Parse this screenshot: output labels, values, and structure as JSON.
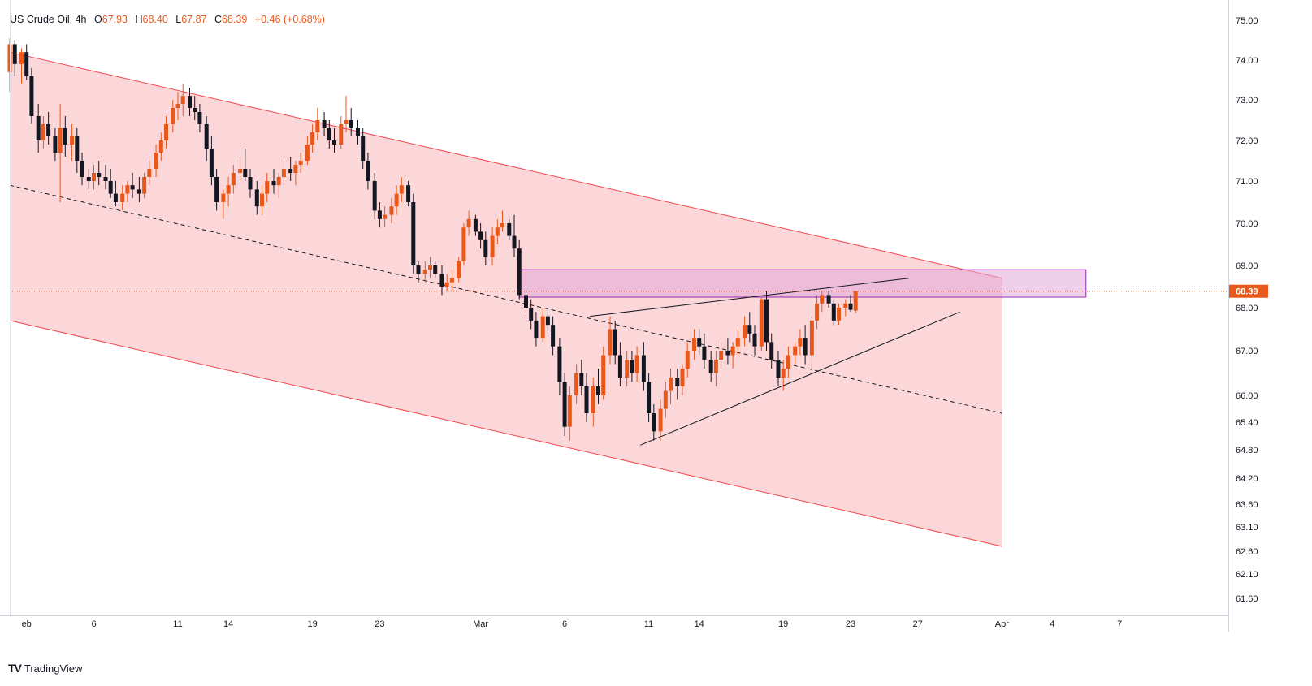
{
  "header": {
    "symbol": "US Crude Oil, 4h",
    "open_label": "O",
    "open": "67.93",
    "high_label": "H",
    "high": "68.40",
    "low_label": "L",
    "low": "67.87",
    "close_label": "C",
    "close": "68.39",
    "change": "+0.46 (+0.68%)"
  },
  "brand": {
    "name": "TradingView",
    "logo": "TV"
  },
  "colors": {
    "up": "#e8581b",
    "down": "#131722",
    "channel_fill": "#f9c9cc",
    "channel_line": "#f0484f",
    "zone_fill": "#e2a5d8",
    "zone_line": "#9c27b0",
    "price_badge": "#e8581b"
  },
  "chart_data": {
    "type": "candlestick",
    "interval": "4h",
    "last_price": "68.39",
    "y_ticks": [
      "75.00",
      "74.00",
      "73.00",
      "72.00",
      "71.00",
      "70.00",
      "69.00",
      "68.00",
      "67.00",
      "66.00",
      "65.40",
      "64.80",
      "64.20",
      "63.60",
      "63.10",
      "62.60",
      "62.10",
      "61.60"
    ],
    "y_tick_values": [
      75.0,
      74.0,
      73.0,
      72.0,
      71.0,
      70.0,
      69.0,
      68.0,
      67.0,
      66.0,
      65.4,
      64.8,
      64.2,
      63.6,
      63.1,
      62.6,
      62.1,
      61.6
    ],
    "x_ticks": [
      "eb",
      "6",
      "11",
      "14",
      "19",
      "23",
      "Mar",
      "6",
      "11",
      "14",
      "19",
      "23",
      "27",
      "Apr",
      "4",
      "7"
    ],
    "x_tick_days": [
      33,
      37,
      42,
      45,
      50,
      54,
      60,
      65,
      70,
      73,
      78,
      82,
      86,
      91,
      94,
      98
    ],
    "day_origin_label": "Feb 1 = day 32 (Feb 1 → Apr 7)",
    "candles": [
      [
        32.0,
        73.7,
        74.55,
        73.2,
        74.4
      ],
      [
        32.3,
        74.4,
        74.5,
        73.6,
        73.9
      ],
      [
        32.7,
        73.9,
        74.3,
        73.4,
        74.2
      ],
      [
        33.0,
        74.2,
        74.4,
        73.5,
        73.6
      ],
      [
        33.3,
        73.6,
        73.8,
        72.4,
        72.6
      ],
      [
        33.7,
        72.6,
        72.9,
        71.7,
        72.0
      ],
      [
        34.0,
        72.0,
        72.6,
        71.8,
        72.4
      ],
      [
        34.3,
        72.4,
        72.7,
        71.9,
        72.1
      ],
      [
        34.7,
        72.1,
        72.3,
        71.5,
        71.7
      ],
      [
        35.0,
        71.7,
        72.9,
        70.5,
        72.3
      ],
      [
        35.3,
        72.3,
        72.6,
        71.6,
        71.9
      ],
      [
        35.7,
        71.9,
        72.4,
        71.5,
        72.1
      ],
      [
        36.0,
        72.1,
        72.3,
        71.2,
        71.5
      ],
      [
        36.3,
        71.5,
        71.7,
        70.9,
        71.1
      ],
      [
        36.7,
        71.1,
        71.3,
        70.8,
        71.0
      ],
      [
        37.0,
        71.0,
        71.4,
        70.8,
        71.2
      ],
      [
        37.3,
        71.2,
        71.5,
        70.9,
        71.1
      ],
      [
        37.7,
        71.1,
        71.4,
        70.8,
        71.0
      ],
      [
        38.0,
        71.0,
        71.3,
        70.6,
        70.7
      ],
      [
        38.3,
        70.7,
        71.0,
        70.4,
        70.5
      ],
      [
        38.7,
        70.5,
        70.9,
        70.3,
        70.7
      ],
      [
        39.0,
        70.7,
        71.0,
        70.5,
        70.9
      ],
      [
        39.3,
        70.9,
        71.2,
        70.6,
        70.8
      ],
      [
        39.7,
        70.8,
        71.1,
        70.5,
        70.7
      ],
      [
        40.0,
        70.7,
        71.2,
        70.6,
        71.1
      ],
      [
        40.3,
        71.1,
        71.5,
        70.9,
        71.3
      ],
      [
        40.7,
        71.3,
        71.9,
        71.1,
        71.7
      ],
      [
        41.0,
        71.7,
        72.2,
        71.5,
        72.0
      ],
      [
        41.3,
        72.0,
        72.6,
        71.8,
        72.4
      ],
      [
        41.7,
        72.4,
        73.0,
        72.2,
        72.8
      ],
      [
        42.0,
        72.8,
        73.2,
        72.5,
        72.9
      ],
      [
        42.3,
        72.9,
        73.4,
        72.6,
        73.1
      ],
      [
        42.7,
        73.1,
        73.3,
        72.6,
        72.8
      ],
      [
        43.0,
        72.8,
        73.1,
        72.5,
        72.7
      ],
      [
        43.3,
        72.7,
        72.9,
        72.2,
        72.4
      ],
      [
        43.7,
        72.4,
        72.6,
        71.5,
        71.8
      ],
      [
        44.0,
        71.8,
        72.1,
        70.9,
        71.1
      ],
      [
        44.3,
        71.1,
        71.3,
        70.3,
        70.5
      ],
      [
        44.7,
        70.5,
        70.8,
        70.1,
        70.7
      ],
      [
        45.0,
        70.7,
        71.1,
        70.4,
        70.9
      ],
      [
        45.3,
        70.9,
        71.4,
        70.7,
        71.2
      ],
      [
        45.7,
        71.2,
        71.6,
        71.0,
        71.3
      ],
      [
        46.0,
        71.3,
        71.8,
        71.0,
        71.1
      ],
      [
        46.3,
        71.1,
        71.3,
        70.6,
        70.8
      ],
      [
        46.7,
        70.8,
        71.0,
        70.2,
        70.4
      ],
      [
        47.0,
        70.4,
        70.9,
        70.2,
        70.7
      ],
      [
        47.3,
        70.7,
        71.2,
        70.5,
        71.0
      ],
      [
        47.7,
        71.0,
        71.3,
        70.7,
        70.9
      ],
      [
        48.0,
        70.9,
        71.2,
        70.6,
        71.1
      ],
      [
        48.3,
        71.1,
        71.5,
        70.9,
        71.3
      ],
      [
        48.7,
        71.3,
        71.6,
        71.0,
        71.2
      ],
      [
        49.0,
        71.2,
        71.5,
        70.9,
        71.4
      ],
      [
        49.3,
        71.4,
        71.7,
        71.2,
        71.5
      ],
      [
        49.7,
        71.5,
        72.1,
        71.4,
        71.9
      ],
      [
        50.0,
        71.9,
        72.4,
        71.7,
        72.2
      ],
      [
        50.3,
        72.2,
        72.8,
        72.0,
        72.5
      ],
      [
        50.7,
        72.5,
        72.7,
        72.1,
        72.3
      ],
      [
        51.0,
        72.3,
        72.5,
        71.8,
        72.0
      ],
      [
        51.3,
        72.0,
        72.3,
        71.7,
        71.9
      ],
      [
        51.7,
        71.9,
        72.6,
        71.8,
        72.4
      ],
      [
        52.0,
        72.4,
        73.1,
        72.2,
        72.5
      ],
      [
        52.3,
        72.5,
        72.8,
        72.1,
        72.3
      ],
      [
        52.7,
        72.3,
        72.5,
        71.9,
        72.1
      ],
      [
        53.0,
        72.1,
        72.3,
        71.3,
        71.5
      ],
      [
        53.3,
        71.5,
        71.7,
        70.8,
        71.0
      ],
      [
        53.7,
        71.0,
        71.2,
        70.1,
        70.3
      ],
      [
        54.0,
        70.3,
        70.5,
        69.9,
        70.1
      ],
      [
        54.3,
        70.1,
        70.4,
        69.9,
        70.2
      ],
      [
        54.7,
        70.2,
        70.6,
        70.0,
        70.4
      ],
      [
        55.0,
        70.4,
        70.9,
        70.2,
        70.7
      ],
      [
        55.3,
        70.7,
        71.1,
        70.5,
        70.9
      ],
      [
        55.7,
        70.9,
        71.0,
        70.4,
        70.5
      ],
      [
        56.0,
        70.5,
        70.7,
        68.8,
        69.0
      ],
      [
        56.3,
        69.0,
        69.1,
        68.6,
        68.8
      ],
      [
        56.7,
        68.8,
        69.1,
        68.6,
        68.9
      ],
      [
        57.0,
        68.9,
        69.2,
        68.7,
        69.0
      ],
      [
        57.3,
        69.0,
        69.1,
        68.7,
        68.8
      ],
      [
        57.7,
        68.8,
        69.0,
        68.3,
        68.5
      ],
      [
        58.0,
        68.5,
        68.8,
        68.4,
        68.6
      ],
      [
        58.3,
        68.6,
        68.9,
        68.4,
        68.7
      ],
      [
        58.7,
        68.7,
        69.2,
        68.6,
        69.1
      ],
      [
        59.0,
        69.1,
        70.0,
        69.0,
        69.9
      ],
      [
        59.3,
        69.9,
        70.3,
        69.7,
        70.1
      ],
      [
        59.7,
        70.1,
        70.2,
        69.7,
        69.8
      ],
      [
        60.0,
        69.8,
        70.0,
        69.4,
        69.6
      ],
      [
        60.3,
        69.6,
        69.8,
        69.0,
        69.2
      ],
      [
        60.7,
        69.2,
        69.9,
        69.0,
        69.7
      ],
      [
        61.0,
        69.7,
        70.1,
        69.5,
        69.9
      ],
      [
        61.3,
        69.9,
        70.3,
        69.8,
        70.0
      ],
      [
        61.7,
        70.0,
        70.1,
        69.6,
        69.7
      ],
      [
        62.0,
        69.7,
        70.2,
        69.2,
        69.4
      ],
      [
        62.3,
        69.4,
        69.6,
        68.2,
        68.3
      ],
      [
        62.7,
        68.3,
        68.5,
        67.8,
        68.0
      ],
      [
        63.0,
        68.0,
        68.2,
        67.5,
        67.7
      ],
      [
        63.3,
        67.7,
        67.9,
        67.1,
        67.3
      ],
      [
        63.7,
        67.3,
        68.0,
        67.2,
        67.8
      ],
      [
        64.0,
        67.8,
        68.0,
        67.4,
        67.6
      ],
      [
        64.3,
        67.6,
        67.8,
        66.9,
        67.1
      ],
      [
        64.7,
        67.1,
        67.3,
        66.0,
        66.3
      ],
      [
        65.0,
        66.3,
        66.5,
        65.1,
        65.3
      ],
      [
        65.3,
        65.3,
        66.2,
        65.0,
        66.0
      ],
      [
        65.7,
        66.0,
        66.7,
        65.8,
        66.5
      ],
      [
        66.0,
        66.5,
        66.8,
        66.0,
        66.2
      ],
      [
        66.3,
        66.2,
        66.5,
        65.4,
        65.6
      ],
      [
        66.7,
        65.6,
        66.4,
        65.3,
        66.2
      ],
      [
        67.0,
        66.2,
        66.6,
        65.8,
        66.0
      ],
      [
        67.3,
        66.0,
        67.1,
        65.9,
        66.9
      ],
      [
        67.7,
        66.9,
        67.8,
        66.7,
        67.5
      ],
      [
        68.0,
        67.5,
        67.7,
        66.7,
        66.9
      ],
      [
        68.3,
        66.9,
        67.2,
        66.2,
        66.4
      ],
      [
        68.7,
        66.4,
        67.0,
        66.2,
        66.8
      ],
      [
        69.0,
        66.8,
        67.0,
        66.3,
        66.5
      ],
      [
        69.3,
        66.5,
        67.1,
        66.3,
        66.9
      ],
      [
        69.7,
        66.9,
        67.2,
        66.1,
        66.3
      ],
      [
        70.0,
        66.3,
        66.5,
        65.4,
        65.6
      ],
      [
        70.3,
        65.6,
        65.8,
        65.0,
        65.2
      ],
      [
        70.7,
        65.2,
        65.9,
        65.0,
        65.7
      ],
      [
        71.0,
        65.7,
        66.3,
        65.5,
        66.1
      ],
      [
        71.3,
        66.1,
        66.6,
        65.8,
        66.4
      ],
      [
        71.7,
        66.4,
        66.6,
        65.9,
        66.2
      ],
      [
        72.0,
        66.2,
        66.7,
        66.0,
        66.6
      ],
      [
        72.3,
        66.6,
        67.2,
        66.4,
        67.0
      ],
      [
        72.7,
        67.0,
        67.5,
        66.8,
        67.3
      ],
      [
        73.0,
        67.3,
        67.5,
        66.9,
        67.1
      ],
      [
        73.3,
        67.1,
        67.4,
        66.6,
        66.8
      ],
      [
        73.7,
        66.8,
        67.0,
        66.3,
        66.5
      ],
      [
        74.0,
        66.5,
        67.0,
        66.2,
        66.8
      ],
      [
        74.3,
        66.8,
        67.2,
        66.6,
        67.0
      ],
      [
        74.7,
        67.0,
        67.3,
        66.7,
        66.9
      ],
      [
        75.0,
        66.9,
        67.2,
        66.6,
        67.1
      ],
      [
        75.3,
        67.1,
        67.5,
        66.9,
        67.3
      ],
      [
        75.7,
        67.3,
        67.8,
        67.1,
        67.6
      ],
      [
        76.0,
        67.6,
        67.9,
        67.2,
        67.4
      ],
      [
        76.3,
        67.4,
        67.6,
        66.9,
        67.1
      ],
      [
        76.7,
        67.1,
        68.3,
        67.0,
        68.2
      ],
      [
        77.0,
        68.2,
        68.4,
        67.0,
        67.2
      ],
      [
        77.3,
        67.2,
        67.4,
        66.6,
        66.8
      ],
      [
        77.7,
        66.8,
        67.0,
        66.2,
        66.4
      ],
      [
        78.0,
        66.4,
        66.8,
        66.1,
        66.6
      ],
      [
        78.3,
        66.6,
        67.1,
        66.4,
        66.9
      ],
      [
        78.7,
        66.9,
        67.2,
        66.7,
        67.1
      ],
      [
        79.0,
        67.1,
        67.5,
        66.9,
        67.3
      ],
      [
        79.3,
        67.3,
        67.6,
        66.7,
        66.9
      ],
      [
        79.7,
        66.9,
        67.8,
        66.6,
        67.7
      ],
      [
        80.0,
        67.7,
        68.3,
        67.5,
        68.1
      ],
      [
        80.3,
        68.1,
        68.4,
        67.9,
        68.3
      ],
      [
        80.7,
        68.3,
        68.4,
        68.0,
        68.1
      ],
      [
        81.0,
        68.1,
        68.2,
        67.6,
        67.7
      ],
      [
        81.3,
        67.7,
        68.1,
        67.6,
        68.0
      ],
      [
        81.7,
        68.0,
        68.2,
        67.8,
        68.1
      ],
      [
        82.0,
        68.1,
        68.3,
        67.9,
        67.95
      ],
      [
        82.3,
        67.93,
        68.4,
        67.87,
        68.39
      ]
    ],
    "annotations": {
      "channel": {
        "upper": [
          [
            32.0,
            74.2
          ],
          [
            91.0,
            68.7
          ]
        ],
        "lower": [
          [
            32.0,
            67.7
          ],
          [
            91.0,
            62.7
          ]
        ],
        "mid_dashed": [
          [
            32.0,
            70.9
          ],
          [
            91.0,
            65.6
          ]
        ],
        "end_day": 91.0
      },
      "zone": {
        "from_day": 62.3,
        "to_day": 96.0,
        "top": 68.9,
        "bottom": 68.25
      },
      "upper_trendline": [
        [
          66.5,
          67.8
        ],
        [
          85.5,
          68.7
        ]
      ],
      "lower_trendline": [
        [
          69.5,
          64.9
        ],
        [
          88.5,
          67.9
        ]
      ],
      "last_price_line": 68.39
    }
  }
}
